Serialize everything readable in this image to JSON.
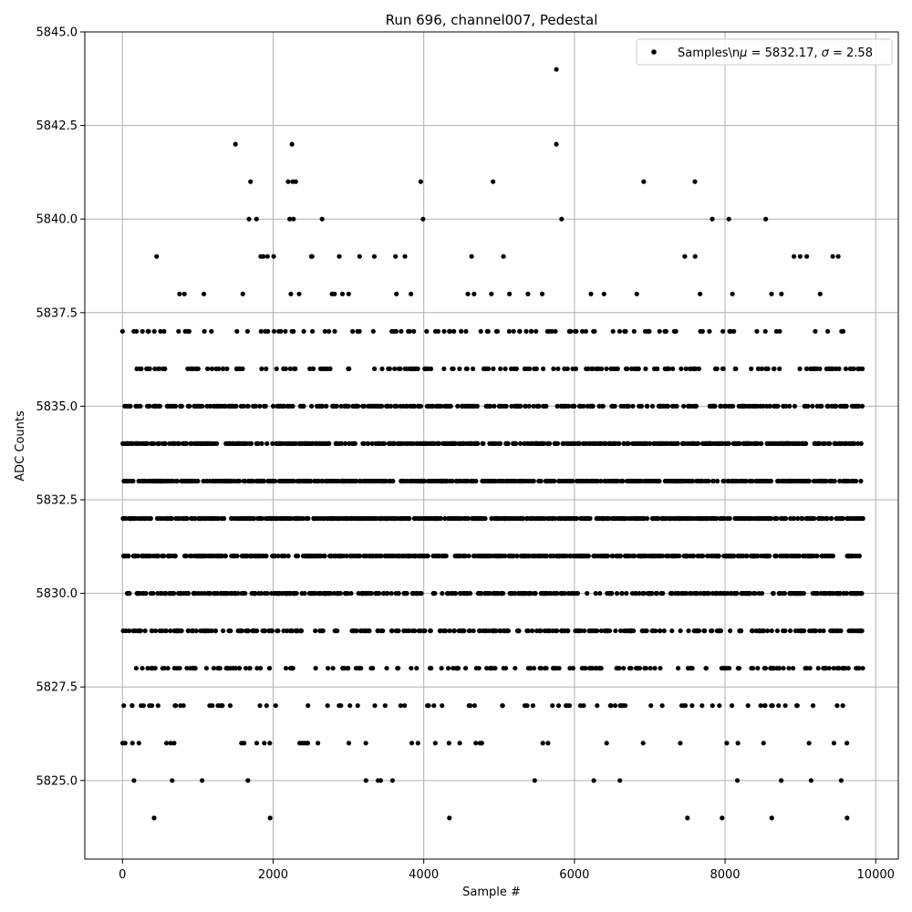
{
  "chart_data": {
    "type": "scatter",
    "title": "Run 696, channel007, Pedestal",
    "xlabel": "Sample #",
    "ylabel": "ADC Counts",
    "xlim": [
      -500,
      10300
    ],
    "ylim": [
      5822.9,
      5845
    ],
    "xticks": [
      0,
      2000,
      4000,
      6000,
      8000,
      10000
    ],
    "xtick_labels": [
      "0",
      "2000",
      "4000",
      "6000",
      "8000",
      "10000"
    ],
    "yticks": [
      5825.0,
      5827.5,
      5830.0,
      5832.5,
      5835.0,
      5837.5,
      5840.0,
      5842.5,
      5845.0
    ],
    "ytick_labels": [
      "5825.0",
      "5827.5",
      "5830.0",
      "5832.5",
      "5835.0",
      "5837.5",
      "5840.0",
      "5842.5",
      "5845.0"
    ],
    "grid": true,
    "legend_position": "top-right",
    "series": [
      {
        "legend_prefix": "Samples\\n",
        "legend_text": " = 5832.17, ",
        "legend_mu_symbol": "μ",
        "legend_sigma_symbol": "σ",
        "legend_sigma_text": " = 2.58",
        "color": "#000000",
        "marker": "circle",
        "x_range": [
          0,
          9830
        ],
        "mean": 5832.17,
        "std": 2.58,
        "values_are_integers": true,
        "outliers": [
          {
            "x": 5760,
            "y": 5844
          },
          {
            "x": 1500,
            "y": 5842
          },
          {
            "x": 2250,
            "y": 5842
          },
          {
            "x": 5760,
            "y": 5842
          },
          {
            "x": 1700,
            "y": 5841
          },
          {
            "x": 2200,
            "y": 5841
          },
          {
            "x": 2260,
            "y": 5841
          },
          {
            "x": 2300,
            "y": 5841
          },
          {
            "x": 3960,
            "y": 5841
          },
          {
            "x": 4920,
            "y": 5841
          },
          {
            "x": 6920,
            "y": 5841
          },
          {
            "x": 7600,
            "y": 5841
          },
          {
            "x": 1680,
            "y": 5840
          },
          {
            "x": 1780,
            "y": 5840
          },
          {
            "x": 2220,
            "y": 5840
          },
          {
            "x": 2270,
            "y": 5840
          },
          {
            "x": 2650,
            "y": 5840
          },
          {
            "x": 3990,
            "y": 5840
          },
          {
            "x": 5830,
            "y": 5840
          },
          {
            "x": 7830,
            "y": 5840
          },
          {
            "x": 8050,
            "y": 5840
          },
          {
            "x": 8540,
            "y": 5840
          },
          {
            "x": 420,
            "y": 5824
          },
          {
            "x": 1960,
            "y": 5824
          },
          {
            "x": 4340,
            "y": 5824
          },
          {
            "x": 7500,
            "y": 5824
          },
          {
            "x": 7960,
            "y": 5824
          },
          {
            "x": 8620,
            "y": 5824
          },
          {
            "x": 9620,
            "y": 5824
          }
        ]
      }
    ]
  }
}
